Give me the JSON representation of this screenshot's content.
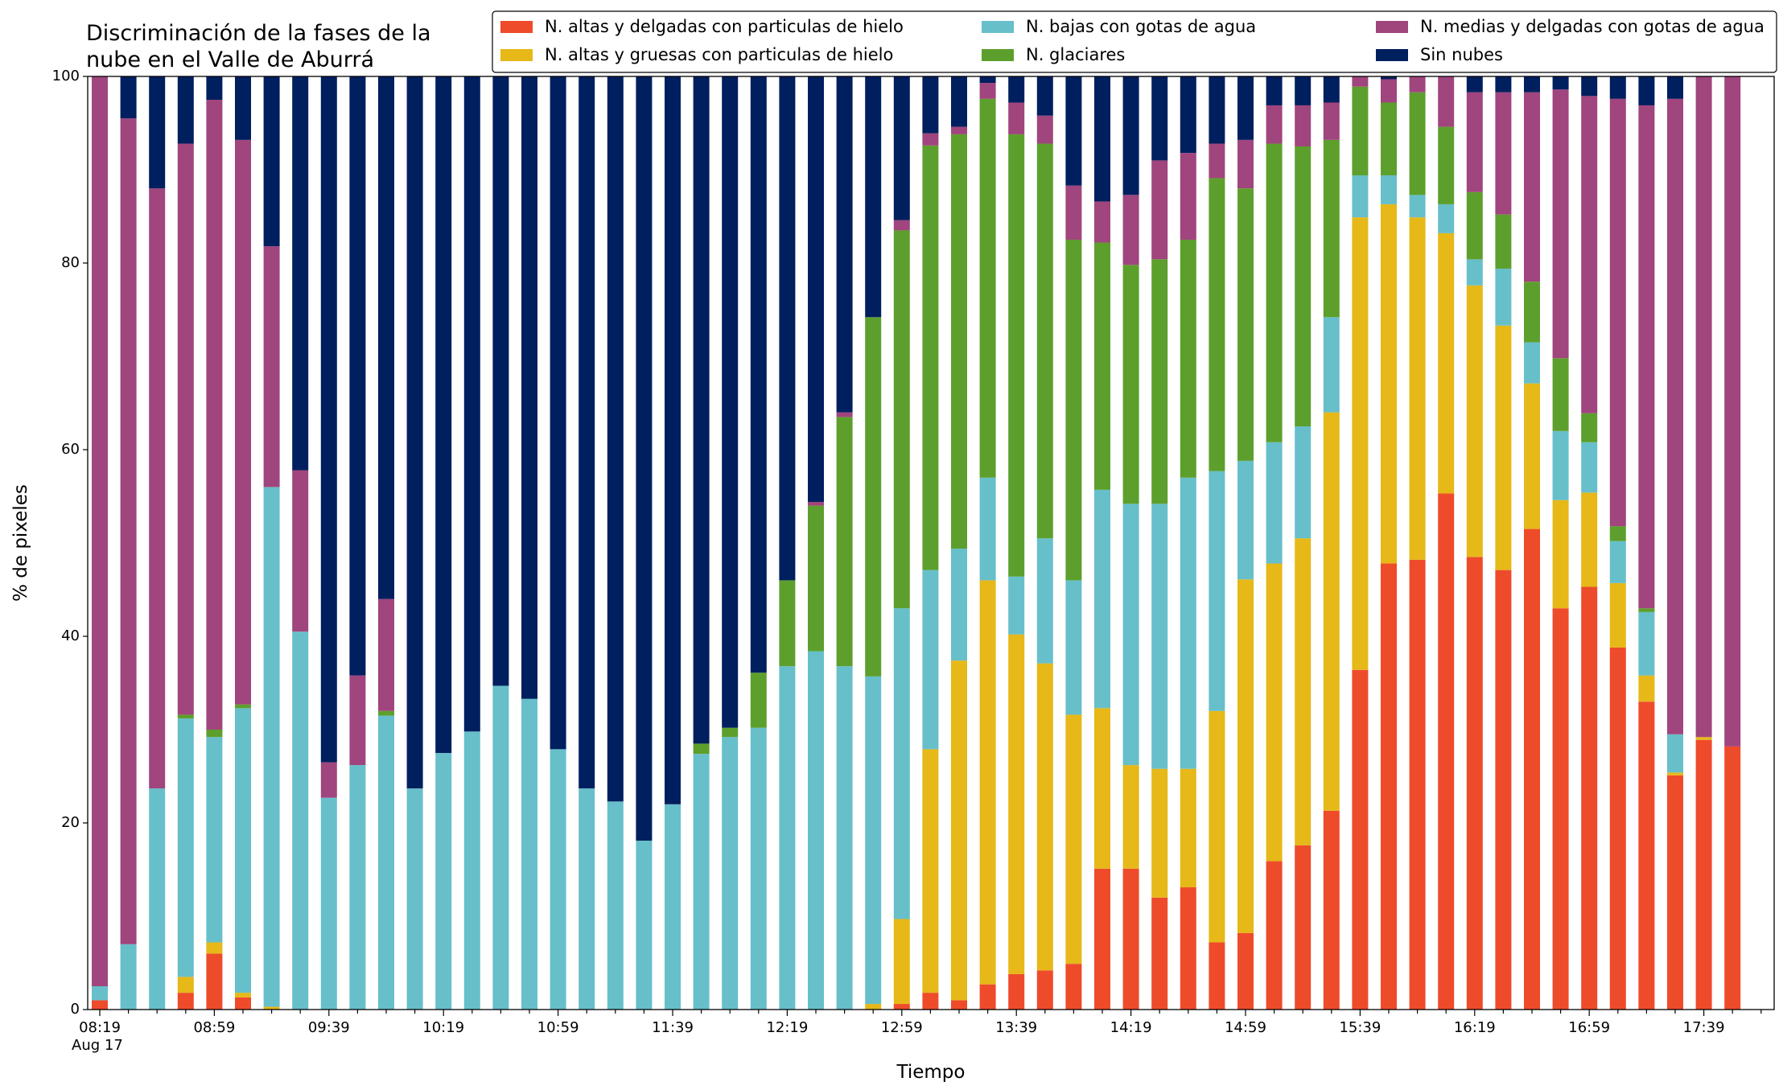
{
  "chart_data": {
    "type": "stacked_bar",
    "title_lines": [
      "Discriminación de la fases de la",
      "nube en el Valle de Aburrá"
    ],
    "x_label": "Tiempo",
    "y_label": "% de pixeles",
    "x_sublabel": "Aug 17",
    "categories": [
      "08:19",
      null,
      null,
      null,
      "08:59",
      null,
      null,
      null,
      "09:39",
      null,
      null,
      null,
      "10:19",
      null,
      null,
      null,
      "10:59",
      null,
      null,
      null,
      "11:39",
      null,
      null,
      null,
      "12:19",
      null,
      null,
      null,
      "12:59",
      null,
      null,
      null,
      "13:39",
      null,
      null,
      null,
      "14:19",
      null,
      null,
      null,
      "14:59",
      null,
      null,
      null,
      "15:39",
      null,
      null,
      null,
      "16:19",
      null,
      null,
      null,
      "16:59",
      null,
      null,
      null,
      "17:39",
      null
    ],
    "ylim": [
      0,
      100
    ],
    "yticks": [
      0,
      20,
      40,
      60,
      80,
      100
    ],
    "grid": false,
    "series": [
      {
        "name": "N. altas y delgadas con particulas de hielo",
        "color": "#ee4b2b",
        "values": [
          1,
          0,
          0,
          1.8,
          6,
          1.3,
          0,
          0,
          0,
          0,
          0,
          0,
          0,
          0,
          0,
          0,
          0,
          0,
          0,
          0,
          0,
          0,
          0,
          0,
          0,
          0,
          0,
          0,
          0.6,
          1.8,
          1,
          2.7,
          3.8,
          4.2,
          4.9,
          15.1,
          15.1,
          12,
          13.1,
          7.2,
          8.2,
          15.9,
          17.6,
          21.3,
          36.4,
          47.8,
          48.2,
          55.3,
          48.5,
          47.1,
          51.5,
          43,
          45.3,
          38.8,
          33,
          25.1,
          28.9,
          28.2
        ]
      },
      {
        "name": "N. altas y gruesas con particulas de hielo",
        "color": "#e6b818",
        "values": [
          0,
          0,
          0,
          1.7,
          1.2,
          0.5,
          0.3,
          0,
          0,
          0,
          0,
          0,
          0,
          0,
          0,
          0,
          0,
          0,
          0,
          0,
          0,
          0,
          0,
          0,
          0,
          0,
          0,
          0.6,
          9.1,
          26.1,
          36.4,
          43.3,
          36.4,
          32.9,
          26.7,
          17.2,
          11.1,
          13.8,
          12.7,
          24.8,
          37.9,
          31.9,
          32.9,
          42.7,
          48.5,
          38.5,
          36.7,
          27.9,
          29.1,
          26.2,
          15.6,
          11.6,
          10.1,
          6.9,
          2.8,
          0.3,
          0.3,
          0
        ]
      },
      {
        "name": "N. bajas con gotas de agua",
        "color": "#67bfca",
        "values": [
          1.5,
          7,
          23.7,
          27.7,
          22,
          30.5,
          55.7,
          40.5,
          22.7,
          26.2,
          31.5,
          23.7,
          27.5,
          29.8,
          34.7,
          33.3,
          27.9,
          23.7,
          22.3,
          18.1,
          22,
          27.4,
          29.2,
          30.2,
          36.8,
          38.4,
          36.8,
          35.1,
          33.3,
          19.2,
          12,
          11,
          6.2,
          13.4,
          14.4,
          23.4,
          28,
          28.4,
          31.2,
          25.7,
          12.7,
          13,
          12,
          10.2,
          4.5,
          3.1,
          2.4,
          3.1,
          2.8,
          6.1,
          4.4,
          7.4,
          5.4,
          4.5,
          6.8,
          4.1,
          0,
          0
        ]
      },
      {
        "name": "N. glaciares",
        "color": "#5d9f2c",
        "values": [
          0,
          0,
          0,
          0.4,
          0.8,
          0.4,
          0,
          0,
          0,
          0,
          0.5,
          0,
          0,
          0,
          0,
          0,
          0,
          0,
          0,
          0,
          0,
          1.1,
          1,
          5.9,
          9.2,
          15.6,
          26.7,
          38.5,
          40.5,
          45.5,
          44.4,
          40.6,
          47.4,
          42.3,
          36.5,
          26.5,
          25.6,
          26.2,
          25.5,
          31.4,
          29.2,
          32,
          30,
          19,
          9.5,
          7.8,
          11,
          8.3,
          7.2,
          5.8,
          6.5,
          7.8,
          3.1,
          1.6,
          0.4,
          0,
          0,
          0
        ]
      },
      {
        "name": "N. medias y delgadas con gotas de agua",
        "color": "#a0457d",
        "values": [
          97.5,
          88.5,
          64.3,
          61.2,
          67.5,
          60.5,
          25.8,
          17.3,
          3.8,
          9.6,
          12,
          0,
          0,
          0,
          0,
          0,
          0,
          0,
          0,
          0,
          0,
          0,
          0,
          0,
          0,
          0.4,
          0.5,
          0,
          1.1,
          1.3,
          0.8,
          1.7,
          3.4,
          3,
          5.8,
          4.4,
          7.5,
          10.6,
          9.3,
          3.7,
          5.2,
          4.1,
          4.4,
          4,
          1.1,
          2.5,
          1.7,
          5.4,
          10.7,
          13.1,
          20.3,
          28.8,
          34,
          45.8,
          53.9,
          68.1,
          70.8,
          71.8
        ]
      },
      {
        "name": "Sin nubes",
        "color": "#001f5f",
        "values": [
          0,
          4.5,
          12,
          7.2,
          2.5,
          6.8,
          18.2,
          42.2,
          73.5,
          64.2,
          56,
          76.3,
          72.5,
          70.2,
          65.3,
          66.7,
          72.1,
          76.3,
          77.7,
          81.9,
          78,
          71.5,
          69.8,
          63.9,
          54,
          45.6,
          36,
          25.8,
          15.4,
          6.1,
          5.4,
          0.7,
          2.8,
          4.2,
          11.7,
          13.4,
          12.7,
          9,
          8.2,
          7.2,
          6.8,
          3.1,
          3.1,
          2.8,
          0,
          0.3,
          0,
          0,
          1.7,
          1.7,
          1.7,
          1.4,
          2.1,
          2.4,
          3.1,
          2.4,
          0,
          0
        ]
      }
    ]
  }
}
